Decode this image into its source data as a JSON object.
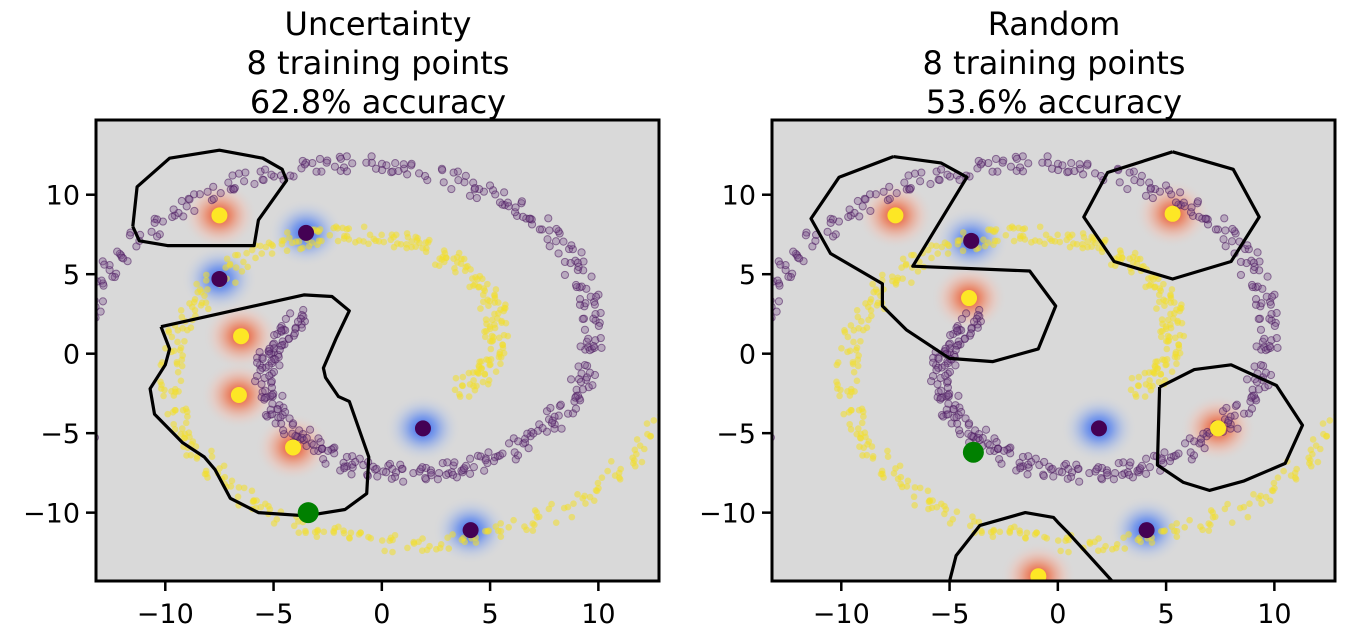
{
  "chart_data": [
    {
      "type": "scatter",
      "title_lines": [
        "Uncertainty",
        "8 training points",
        "62.8% accuracy"
      ],
      "xlim": [
        -13.2,
        12.8
      ],
      "ylim": [
        -14.3,
        14.7
      ],
      "xticks": [
        -10,
        -5,
        0,
        5,
        10
      ],
      "yticks": [
        -10,
        -5,
        0,
        5,
        10
      ],
      "xtick_labels": [
        "−10",
        "−5",
        "0",
        "5",
        "10"
      ],
      "ytick_labels": [
        "−10",
        "−5",
        "0",
        "5",
        "10"
      ],
      "grid": false,
      "background_color": "#d9d9d9",
      "training_points_class1": [
        [
          -7.5,
          8.7
        ],
        [
          -6.5,
          1.1
        ],
        [
          -6.6,
          -2.6
        ],
        [
          -4.1,
          -5.9
        ]
      ],
      "training_points_class0": [
        [
          -3.5,
          7.6
        ],
        [
          -7.5,
          4.7
        ],
        [
          1.9,
          -4.7
        ],
        [
          4.1,
          -11.1
        ]
      ],
      "query_point": [
        -3.4,
        -10.0
      ],
      "boundaries": [
        [
          [
            -11.5,
            8.0
          ],
          [
            -11.3,
            10.5
          ],
          [
            -9.8,
            12.3
          ],
          [
            -7.5,
            12.8
          ],
          [
            -5.5,
            12.3
          ],
          [
            -4.6,
            11.6
          ],
          [
            -4.4,
            10.9
          ],
          [
            -5.7,
            8.4
          ],
          [
            -5.9,
            6.8
          ],
          [
            -9.9,
            6.8
          ],
          [
            -11.2,
            7.1
          ],
          [
            -11.5,
            8.0
          ]
        ],
        [
          [
            -10.2,
            1.7
          ],
          [
            -3.6,
            3.7
          ],
          [
            -2.3,
            3.6
          ],
          [
            -1.5,
            2.7
          ],
          [
            -2.1,
            1.0
          ],
          [
            -2.7,
            -0.9
          ],
          [
            -2.6,
            -1.5
          ],
          [
            -2.0,
            -2.7
          ],
          [
            -1.5,
            -3.0
          ],
          [
            -0.6,
            -6.5
          ],
          [
            -0.7,
            -8.8
          ],
          [
            -1.7,
            -9.8
          ],
          [
            -3.5,
            -10.2
          ],
          [
            -5.7,
            -10.0
          ],
          [
            -7.0,
            -9.1
          ],
          [
            -7.7,
            -7.3
          ],
          [
            -8.2,
            -6.5
          ],
          [
            -9.2,
            -5.6
          ],
          [
            -10.5,
            -3.8
          ],
          [
            -10.7,
            -2.2
          ],
          [
            -10.0,
            -0.7
          ],
          [
            -9.8,
            0.3
          ],
          [
            -10.2,
            1.7
          ]
        ]
      ]
    },
    {
      "type": "scatter",
      "title_lines": [
        "Random",
        "8 training points",
        "53.6% accuracy"
      ],
      "xlim": [
        -13.2,
        12.8
      ],
      "ylim": [
        -14.3,
        14.7
      ],
      "xticks": [
        -10,
        -5,
        0,
        5,
        10
      ],
      "yticks": [
        -10,
        -5,
        0,
        5,
        10
      ],
      "xtick_labels": [
        "−10",
        "−5",
        "0",
        "5",
        "10"
      ],
      "ytick_labels": [
        "−10",
        "−5",
        "0",
        "5",
        "10"
      ],
      "grid": false,
      "background_color": "#d9d9d9",
      "training_points_class1": [
        [
          -7.5,
          8.7
        ],
        [
          5.3,
          8.8
        ],
        [
          -4.1,
          3.5
        ],
        [
          7.4,
          -4.7
        ],
        [
          -0.9,
          -14.0
        ]
      ],
      "training_points_class0": [
        [
          -4.0,
          7.1
        ],
        [
          1.9,
          -4.7
        ],
        [
          4.1,
          -11.1
        ]
      ],
      "query_point": [
        -3.9,
        -6.2
      ],
      "boundaries": [
        [
          [
            -7.6,
            12.4
          ],
          [
            -5.4,
            12.0
          ],
          [
            -4.2,
            11.1
          ],
          [
            -6.7,
            5.5
          ],
          [
            -1.3,
            5.2
          ],
          [
            -0.1,
            3.0
          ],
          [
            -0.9,
            0.3
          ],
          [
            -3.0,
            -0.5
          ],
          [
            -5.0,
            -0.3
          ],
          [
            -7.0,
            1.5
          ],
          [
            -8.1,
            3.0
          ],
          [
            -8.1,
            4.4
          ],
          [
            -10.5,
            6.3
          ],
          [
            -11.4,
            8.5
          ],
          [
            -10.1,
            11.1
          ],
          [
            -7.6,
            12.4
          ]
        ],
        [
          [
            5.3,
            12.7
          ],
          [
            8.1,
            11.6
          ],
          [
            9.3,
            8.6
          ],
          [
            8.0,
            5.8
          ],
          [
            5.3,
            4.7
          ],
          [
            2.6,
            5.8
          ],
          [
            1.2,
            8.6
          ],
          [
            2.3,
            11.4
          ],
          [
            5.3,
            12.7
          ]
        ],
        [
          [
            4.7,
            -2.1
          ],
          [
            6.3,
            -1.0
          ],
          [
            8.0,
            -0.7
          ],
          [
            10.1,
            -2.0
          ],
          [
            11.3,
            -4.5
          ],
          [
            10.5,
            -6.9
          ],
          [
            8.6,
            -8.0
          ],
          [
            7.0,
            -8.6
          ],
          [
            5.8,
            -8.1
          ],
          [
            4.6,
            -7.0
          ],
          [
            4.7,
            -2.1
          ]
        ],
        [
          [
            -5.0,
            -14.3
          ],
          [
            -4.7,
            -12.7
          ],
          [
            -3.6,
            -10.8
          ],
          [
            -1.5,
            -10.0
          ],
          [
            -0.2,
            -10.3
          ],
          [
            0.0,
            -10.6
          ],
          [
            0.5,
            -11.3
          ],
          [
            2.5,
            -14.3
          ]
        ]
      ]
    }
  ]
}
